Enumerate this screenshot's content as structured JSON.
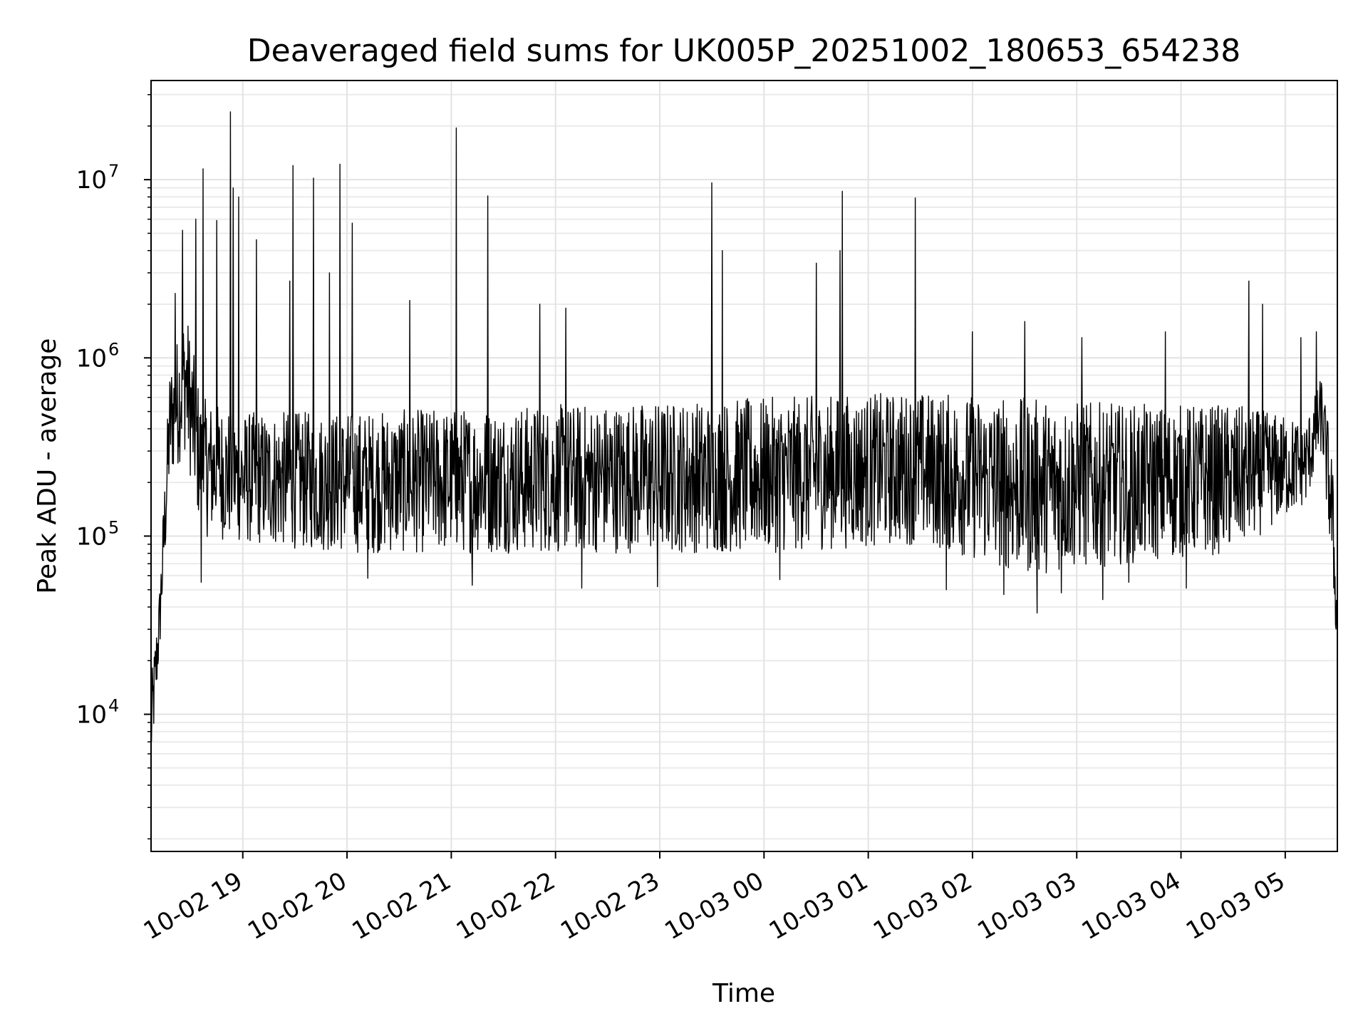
{
  "chart_data": {
    "type": "line",
    "title": "Deaveraged field sums for UK005P_20251002_180653_654238",
    "xlabel": "Time",
    "ylabel": "Peak ADU - average",
    "yscale": "log",
    "ylim": [
      1700,
      36000000
    ],
    "xlim_hours": [
      18.12,
      29.5
    ],
    "grid": true,
    "line_color": "#000000",
    "x_ticks": [
      {
        "hour": 19,
        "label": "10-02 19"
      },
      {
        "hour": 20,
        "label": "10-02 20"
      },
      {
        "hour": 21,
        "label": "10-02 21"
      },
      {
        "hour": 22,
        "label": "10-02 22"
      },
      {
        "hour": 23,
        "label": "10-02 23"
      },
      {
        "hour": 24,
        "label": "10-03 00"
      },
      {
        "hour": 25,
        "label": "10-03 01"
      },
      {
        "hour": 26,
        "label": "10-03 02"
      },
      {
        "hour": 27,
        "label": "10-03 03"
      },
      {
        "hour": 28,
        "label": "10-03 04"
      },
      {
        "hour": 29,
        "label": "10-03 05"
      }
    ],
    "y_ticks": [
      {
        "value": 10000,
        "base": "10",
        "exp": "4"
      },
      {
        "value": 100000,
        "base": "10",
        "exp": "5"
      },
      {
        "value": 1000000,
        "base": "10",
        "exp": "6"
      },
      {
        "value": 10000000,
        "base": "10",
        "exp": "7"
      }
    ],
    "series": [
      {
        "name": "Peak ADU - average",
        "baseline_profile": [
          {
            "hour": 18.12,
            "low": 4500,
            "high": 15000
          },
          {
            "hour": 18.2,
            "low": 20000,
            "high": 50000
          },
          {
            "hour": 18.3,
            "low": 200000,
            "high": 900000
          },
          {
            "hour": 18.45,
            "low": 300000,
            "high": 2000000
          },
          {
            "hour": 18.6,
            "low": 100000,
            "high": 600000
          },
          {
            "hour": 19.0,
            "low": 90000,
            "high": 500000
          },
          {
            "hour": 20.0,
            "low": 80000,
            "high": 500000
          },
          {
            "hour": 22.0,
            "low": 80000,
            "high": 550000
          },
          {
            "hour": 24.0,
            "low": 80000,
            "high": 600000
          },
          {
            "hour": 25.5,
            "low": 90000,
            "high": 650000
          },
          {
            "hour": 26.5,
            "low": 60000,
            "high": 600000
          },
          {
            "hour": 27.5,
            "low": 70000,
            "high": 550000
          },
          {
            "hour": 28.5,
            "low": 80000,
            "high": 550000
          },
          {
            "hour": 29.2,
            "low": 150000,
            "high": 450000
          },
          {
            "hour": 29.35,
            "low": 300000,
            "high": 800000
          },
          {
            "hour": 29.45,
            "low": 60000,
            "high": 300000
          },
          {
            "hour": 29.5,
            "low": 20000,
            "high": 40000
          }
        ],
        "spikes": [
          {
            "hour": 18.35,
            "value": 2300000
          },
          {
            "hour": 18.42,
            "value": 5200000
          },
          {
            "hour": 18.55,
            "value": 6000000
          },
          {
            "hour": 18.62,
            "value": 11500000
          },
          {
            "hour": 18.75,
            "value": 5900000
          },
          {
            "hour": 18.88,
            "value": 24000000
          },
          {
            "hour": 18.91,
            "value": 9000000
          },
          {
            "hour": 18.96,
            "value": 8000000
          },
          {
            "hour": 19.13,
            "value": 4600000
          },
          {
            "hour": 19.45,
            "value": 2700000
          },
          {
            "hour": 19.48,
            "value": 12000000
          },
          {
            "hour": 19.68,
            "value": 10200000
          },
          {
            "hour": 19.83,
            "value": 3000000
          },
          {
            "hour": 19.93,
            "value": 12200000
          },
          {
            "hour": 20.05,
            "value": 5700000
          },
          {
            "hour": 20.6,
            "value": 2100000
          },
          {
            "hour": 21.05,
            "value": 19500000
          },
          {
            "hour": 21.35,
            "value": 8100000
          },
          {
            "hour": 21.85,
            "value": 2000000
          },
          {
            "hour": 22.1,
            "value": 1900000
          },
          {
            "hour": 23.5,
            "value": 9600000
          },
          {
            "hour": 23.6,
            "value": 4000000
          },
          {
            "hour": 24.5,
            "value": 3400000
          },
          {
            "hour": 24.75,
            "value": 8600000
          },
          {
            "hour": 24.73,
            "value": 4000000
          },
          {
            "hour": 25.45,
            "value": 7900000
          },
          {
            "hour": 26.0,
            "value": 1400000
          },
          {
            "hour": 26.5,
            "value": 1600000
          },
          {
            "hour": 27.05,
            "value": 1300000
          },
          {
            "hour": 27.85,
            "value": 1400000
          },
          {
            "hour": 28.65,
            "value": 2700000
          },
          {
            "hour": 28.78,
            "value": 2000000
          },
          {
            "hour": 29.15,
            "value": 1300000
          },
          {
            "hour": 29.3,
            "value": 1400000
          }
        ],
        "dips": [
          {
            "hour": 18.6,
            "value": 55000
          },
          {
            "hour": 20.2,
            "value": 58000
          },
          {
            "hour": 21.2,
            "value": 53000
          },
          {
            "hour": 22.25,
            "value": 51000
          },
          {
            "hour": 22.98,
            "value": 52000
          },
          {
            "hour": 24.15,
            "value": 57000
          },
          {
            "hour": 25.75,
            "value": 50000
          },
          {
            "hour": 26.3,
            "value": 47000
          },
          {
            "hour": 26.62,
            "value": 37000
          },
          {
            "hour": 26.85,
            "value": 48000
          },
          {
            "hour": 27.25,
            "value": 44000
          },
          {
            "hour": 27.5,
            "value": 55000
          },
          {
            "hour": 28.05,
            "value": 51000
          }
        ]
      }
    ]
  }
}
